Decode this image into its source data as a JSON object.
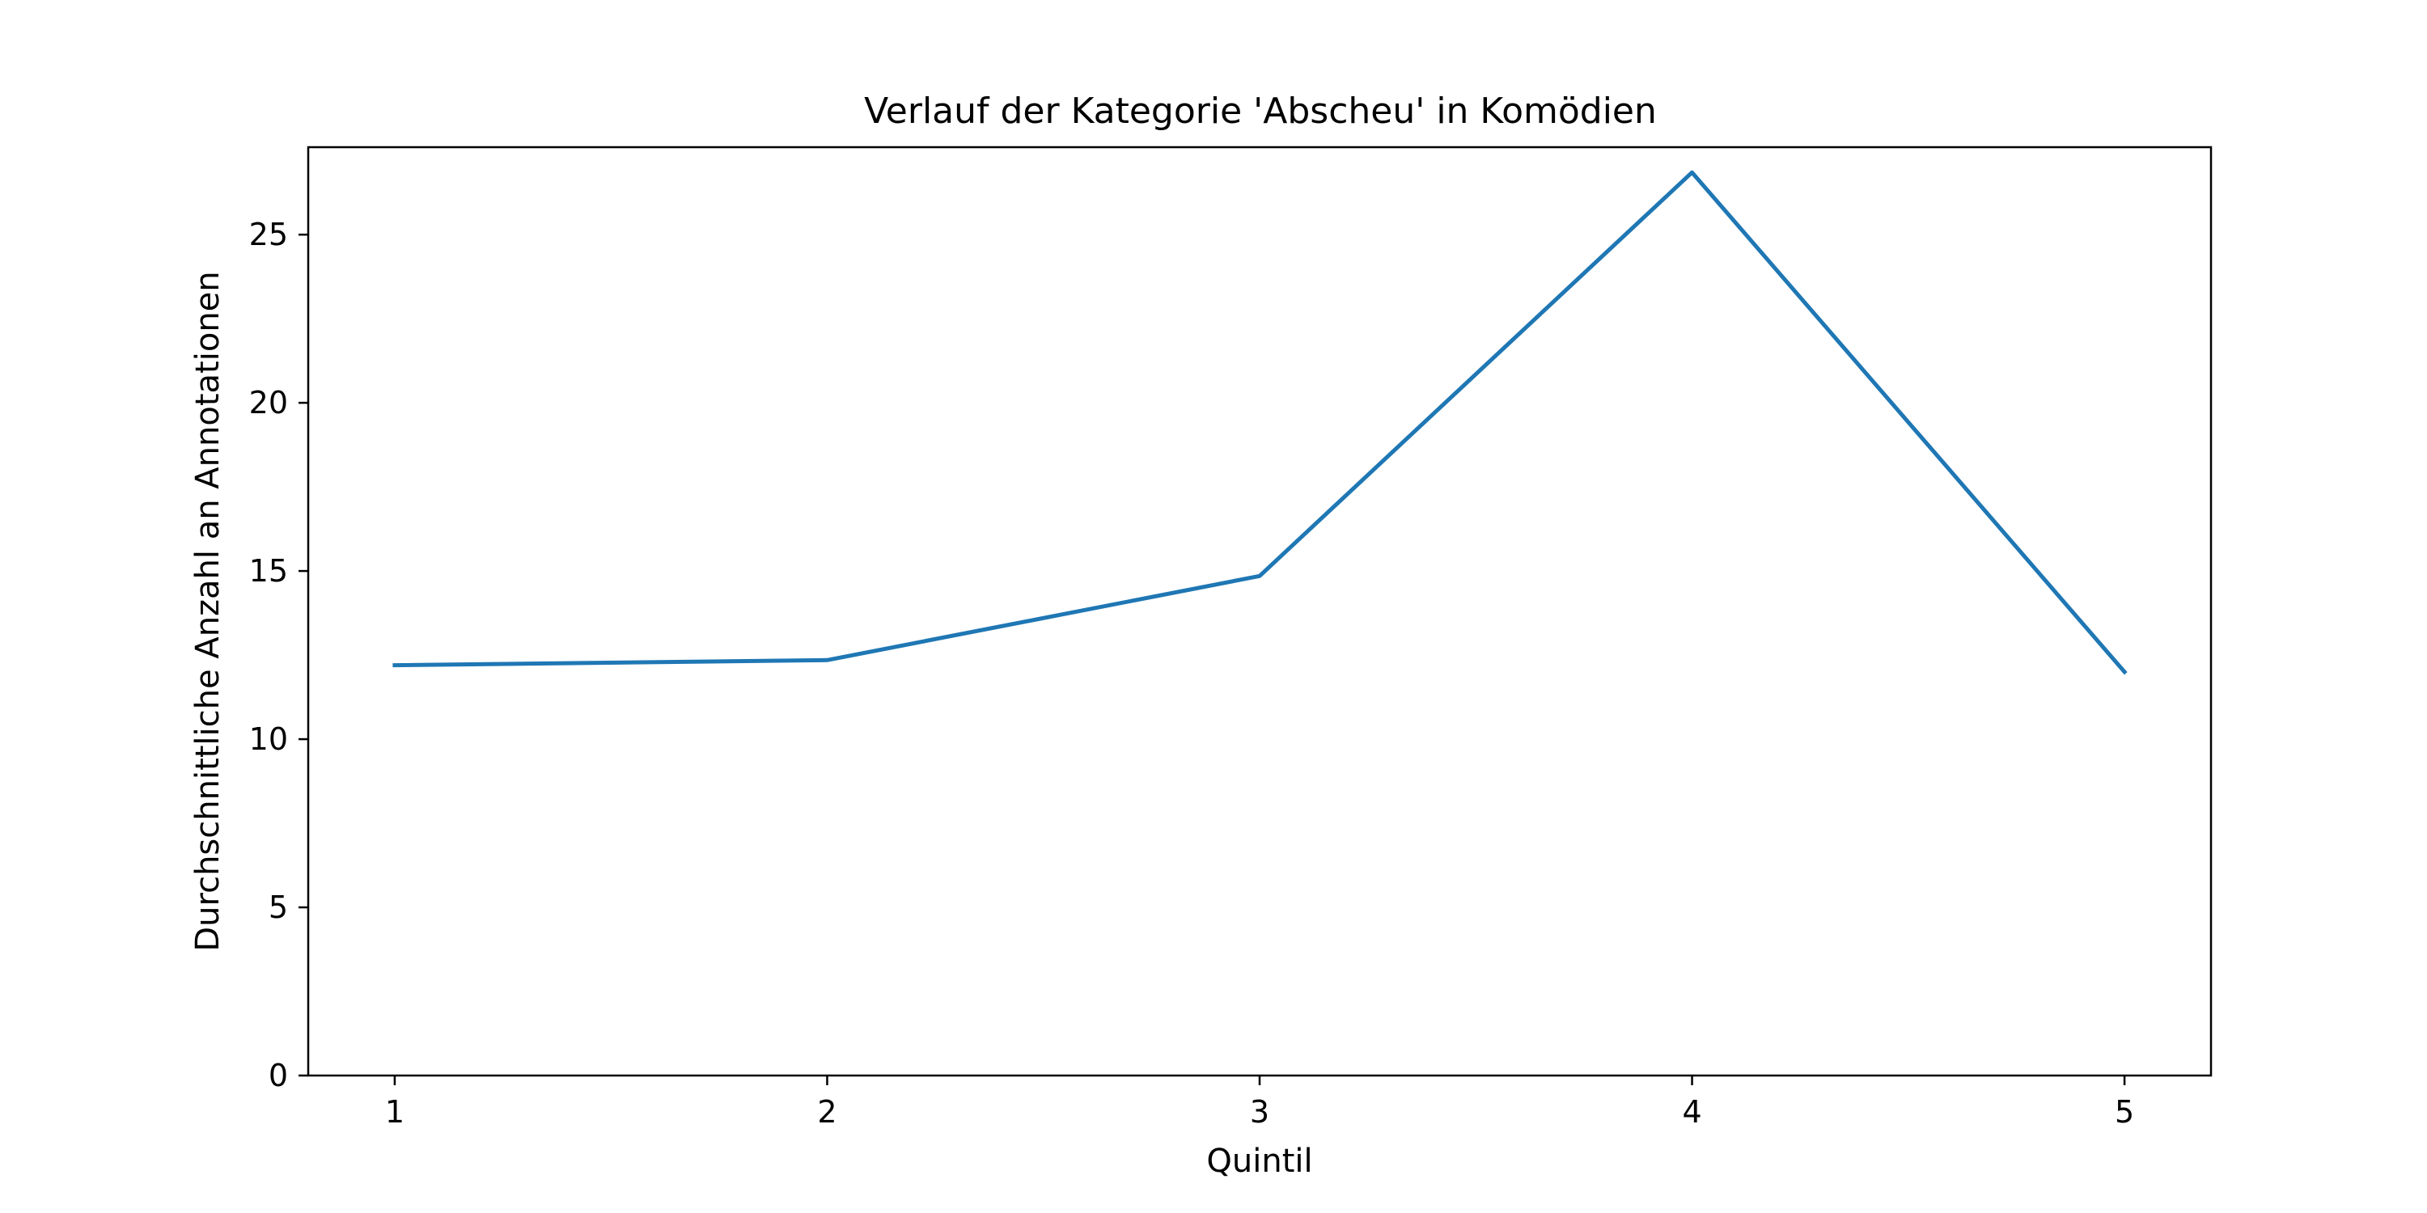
{
  "chart_data": {
    "type": "line",
    "title": "Verlauf der Kategorie 'Abscheu' in Komödien",
    "xlabel": "Quintil",
    "ylabel": "Durchschnittliche Anzahl an Annotationen",
    "x": [
      1,
      2,
      3,
      4,
      5
    ],
    "series": [
      {
        "name": "Abscheu",
        "values": [
          12.2,
          12.35,
          14.85,
          26.85,
          12.0
        ],
        "color": "#1f77b4"
      }
    ],
    "xlim": [
      0.8,
      5.2
    ],
    "ylim": [
      0,
      27.6
    ],
    "xticks": [
      1,
      2,
      3,
      4,
      5
    ],
    "yticks": [
      0,
      5,
      10,
      15,
      20,
      25
    ],
    "grid": false,
    "legend": "none"
  }
}
